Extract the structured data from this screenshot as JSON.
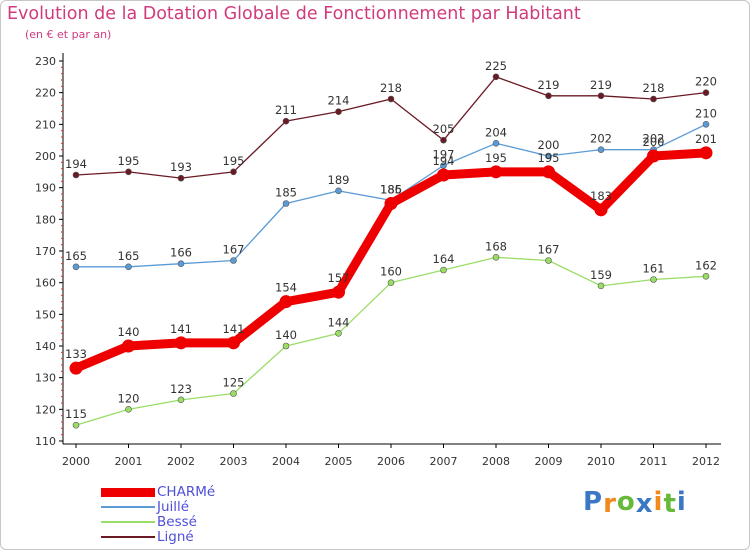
{
  "title": "Evolution de la Dotation Globale de Fonctionnement par Habitant",
  "subtitle": "(en € et par an)",
  "chart_data": {
    "type": "line",
    "title": "Evolution de la Dotation Globale de Fonctionnement par Habitant",
    "subtitle": "(en € et par an)",
    "xlabel": "",
    "ylabel": "",
    "categories": [
      "2000",
      "2001",
      "2002",
      "2003",
      "2004",
      "2005",
      "2006",
      "2007",
      "2008",
      "2009",
      "2010",
      "2011",
      "2012"
    ],
    "ylim": [
      110,
      230
    ],
    "yticks": [
      110,
      120,
      130,
      140,
      150,
      160,
      170,
      180,
      190,
      200,
      210,
      220,
      230
    ],
    "grid": false,
    "legend_position": "bottom-left",
    "series": [
      {
        "name": "Ligné",
        "color": "#6b1a24",
        "values": [
          194,
          195,
          193,
          195,
          211,
          214,
          218,
          205,
          225,
          219,
          219,
          218,
          220
        ]
      },
      {
        "name": "Juillé",
        "color": "#5b9bd5",
        "values": [
          165,
          165,
          166,
          167,
          185,
          189,
          186,
          197,
          204,
          200,
          202,
          202,
          210
        ]
      },
      {
        "name": "Bessé",
        "color": "#99dd66",
        "values": [
          115,
          120,
          123,
          125,
          140,
          144,
          160,
          164,
          168,
          167,
          159,
          161,
          162
        ]
      },
      {
        "name": "CHARMé",
        "color": "#ee0000",
        "values": [
          133,
          140,
          141,
          141,
          154,
          157,
          185,
          194,
          195,
          195,
          183,
          200,
          201
        ]
      }
    ],
    "legend_order": [
      "CHARMé",
      "Juillé",
      "Bessé",
      "Ligné"
    ]
  },
  "logo": {
    "letters": [
      "P",
      "r",
      "o",
      "x",
      "i",
      "t",
      "i"
    ],
    "colors": [
      "#3a78c6",
      "#f08a1c",
      "#67b93a",
      "#3a78c6",
      "#f08a1c",
      "#67b93a",
      "#3a78c6"
    ]
  }
}
